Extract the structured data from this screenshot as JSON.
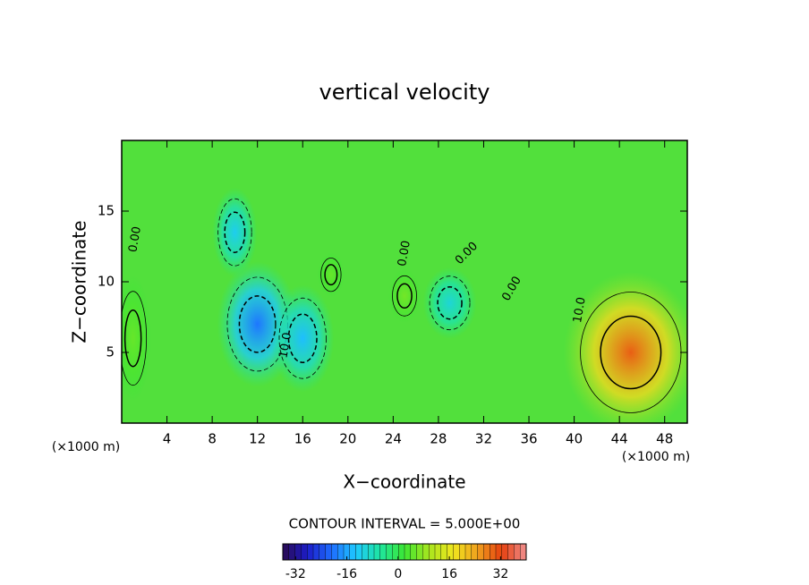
{
  "chart_data": {
    "type": "contour",
    "title": "vertical velocity",
    "x_label": "X−coordinate",
    "y_label": "Z−coordinate",
    "x_unit": "(×1000 m)",
    "xlim": [
      0,
      50
    ],
    "xticks": [
      4,
      8,
      12,
      16,
      20,
      24,
      28,
      32,
      36,
      40,
      44,
      48
    ],
    "ylim": [
      0,
      20
    ],
    "yticks": [
      5,
      10,
      15
    ],
    "contour_interval_label": "CONTOUR INTERVAL = 5.000E+00",
    "contour_labels": [
      "0.00",
      "0.00",
      "0.00",
      "0.00",
      "10.0",
      "10.0"
    ],
    "clim": [
      -36,
      40
    ],
    "cticks": [
      -32,
      -16,
      0,
      16,
      32
    ],
    "colormap": [
      "#2a0a50",
      "#1c1cc8",
      "#1e6cff",
      "#1ec8ff",
      "#1ee6a0",
      "#3ce632",
      "#a8e61e",
      "#f0e61e",
      "#f0a01e",
      "#e6400f",
      "#f09090"
    ],
    "extrema": [
      {
        "x": 12,
        "y": 7,
        "value": -20
      },
      {
        "x": 16,
        "y": 6,
        "value": -14
      },
      {
        "x": 10,
        "y": 13.5,
        "value": -12
      },
      {
        "x": 29,
        "y": 8.5,
        "value": -10
      },
      {
        "x": 45,
        "y": 5,
        "value": 30
      },
      {
        "x": 25,
        "y": 9,
        "value": 6
      },
      {
        "x": 18.5,
        "y": 10.5,
        "value": 5
      },
      {
        "x": 1,
        "y": 6,
        "value": 5
      }
    ]
  }
}
